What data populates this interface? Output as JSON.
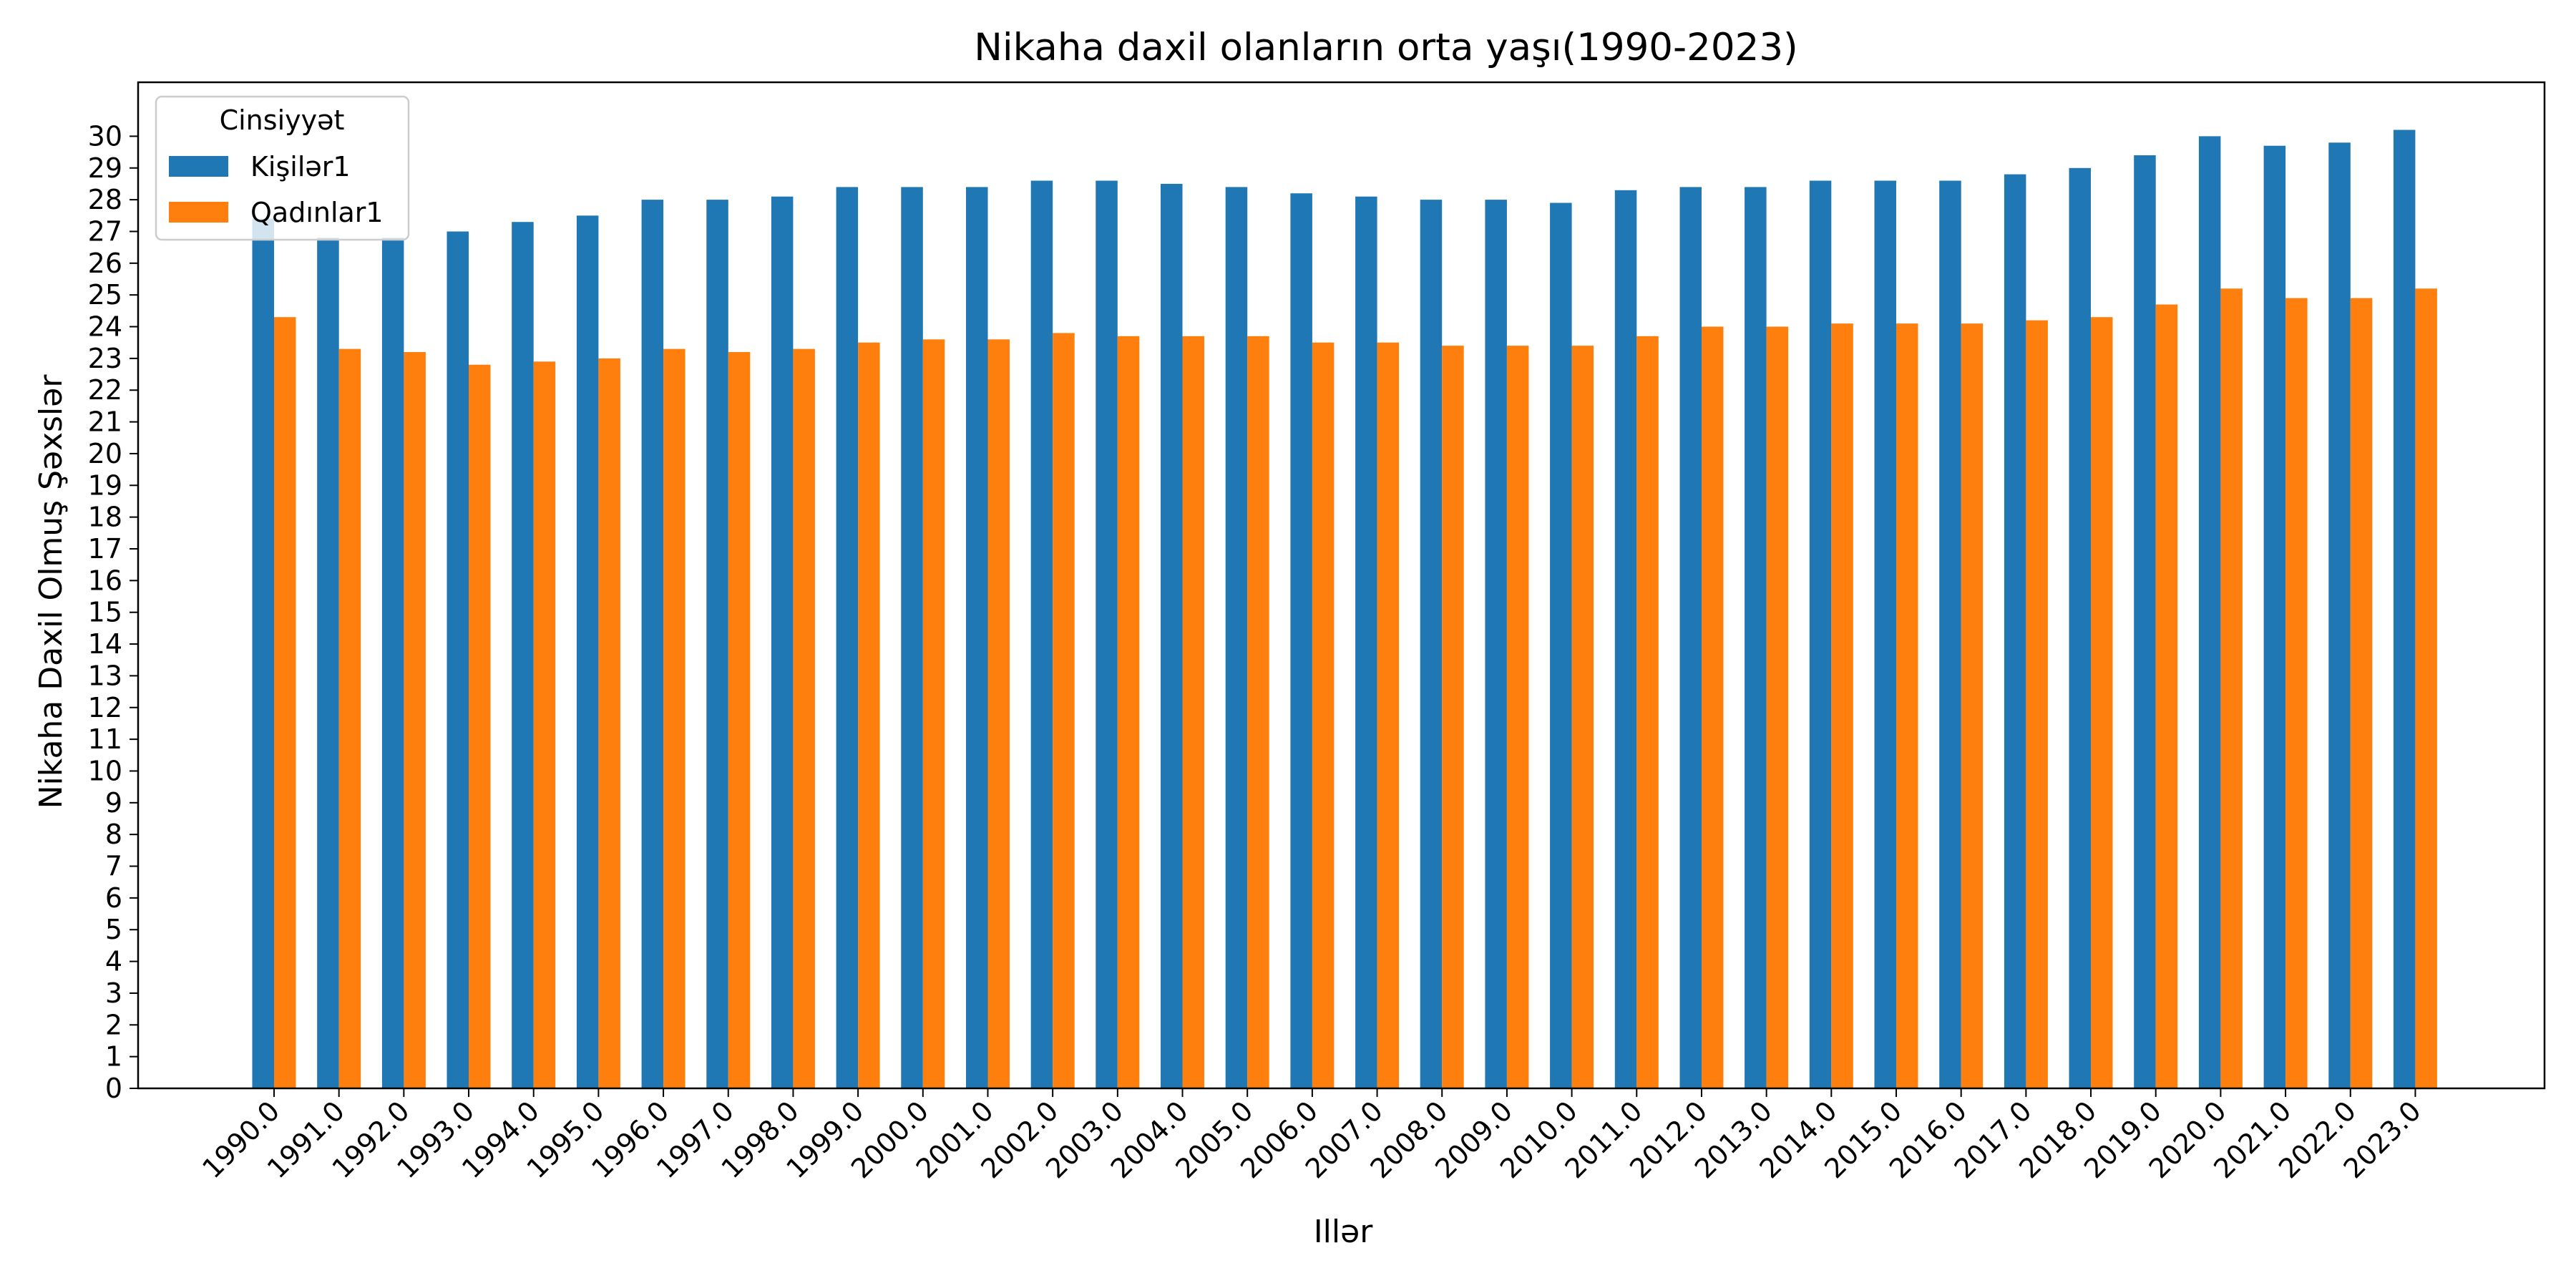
{
  "chart_data": {
    "type": "bar",
    "title": "Nikaha daxil olanların orta yaşı(1990-2023)",
    "xlabel": "Illər",
    "ylabel": "Nikaha Daxil Olmuş Şəxslər",
    "categories": [
      "1990.0",
      "1991.0",
      "1992.0",
      "1993.0",
      "1994.0",
      "1995.0",
      "1996.0",
      "1997.0",
      "1998.0",
      "1999.0",
      "2000.0",
      "2001.0",
      "2002.0",
      "2003.0",
      "2004.0",
      "2005.0",
      "2006.0",
      "2007.0",
      "2008.0",
      "2009.0",
      "2010.0",
      "2011.0",
      "2012.0",
      "2013.0",
      "2014.0",
      "2015.0",
      "2016.0",
      "2017.0",
      "2018.0",
      "2019.0",
      "2020.0",
      "2021.0",
      "2022.0",
      "2023.0"
    ],
    "series": [
      {
        "name": "Kişilər1",
        "color": "#1f77b4",
        "values": [
          27.4,
          26.8,
          26.8,
          27.0,
          27.3,
          27.5,
          28.0,
          28.0,
          28.1,
          28.4,
          28.4,
          28.4,
          28.6,
          28.6,
          28.5,
          28.4,
          28.2,
          28.1,
          28.0,
          28.0,
          27.9,
          28.3,
          28.4,
          28.4,
          28.6,
          28.6,
          28.6,
          28.8,
          29.0,
          29.4,
          30.0,
          29.7,
          29.8,
          30.2
        ]
      },
      {
        "name": "Qadınlar1",
        "color": "#ff7f0e",
        "values": [
          24.3,
          23.3,
          23.2,
          22.8,
          22.9,
          23.0,
          23.3,
          23.2,
          23.3,
          23.5,
          23.6,
          23.6,
          23.8,
          23.7,
          23.7,
          23.7,
          23.5,
          23.5,
          23.4,
          23.4,
          23.4,
          23.7,
          24.0,
          24.0,
          24.1,
          24.1,
          24.1,
          24.2,
          24.3,
          24.7,
          25.2,
          24.9,
          24.9,
          25.2
        ]
      }
    ],
    "yticks": [
      0,
      1,
      2,
      3,
      4,
      5,
      6,
      7,
      8,
      9,
      10,
      11,
      12,
      13,
      14,
      15,
      16,
      17,
      18,
      19,
      20,
      21,
      22,
      23,
      24,
      25,
      26,
      27,
      28,
      29,
      30
    ],
    "ylim": [
      0,
      31.7
    ],
    "grid": false,
    "legend": {
      "title": "Cinsiyyət",
      "placement": "top-left"
    }
  }
}
